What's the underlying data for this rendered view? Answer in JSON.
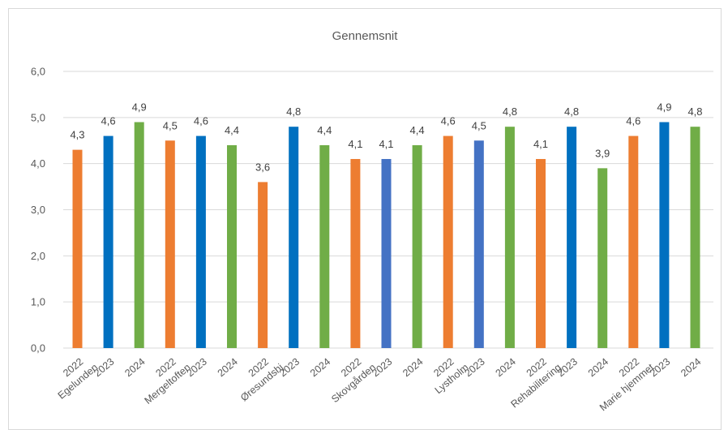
{
  "chart_data": {
    "type": "bar",
    "title": "Gennemsnit",
    "ylim": [
      0,
      6
    ],
    "yticks": [
      "0,0",
      "1,0",
      "2,0",
      "3,0",
      "4,0",
      "5,0",
      "6,0"
    ],
    "ytick_values": [
      0,
      1,
      2,
      3,
      4,
      5,
      6
    ],
    "grid": true,
    "colors": {
      "2022": "#ed7d31",
      "2023": "#0070c0",
      "2024": "#70ad47",
      "alt2023": "#4472c4"
    },
    "bars": [
      {
        "year": "2022",
        "value": 4.3,
        "label": "4,3",
        "color": "#ed7d31"
      },
      {
        "year": "2023",
        "value": 4.6,
        "label": "4,6",
        "color": "#0070c0"
      },
      {
        "year": "2024",
        "value": 4.9,
        "label": "4,9",
        "color": "#70ad47"
      },
      {
        "year": "2022",
        "value": 4.5,
        "label": "4,5",
        "color": "#ed7d31"
      },
      {
        "year": "2023",
        "value": 4.6,
        "label": "4,6",
        "color": "#0070c0"
      },
      {
        "year": "2024",
        "value": 4.4,
        "label": "4,4",
        "color": "#70ad47"
      },
      {
        "year": "2022",
        "value": 3.6,
        "label": "3,6",
        "color": "#ed7d31"
      },
      {
        "year": "2023",
        "value": 4.8,
        "label": "4,8",
        "color": "#0070c0"
      },
      {
        "year": "2024",
        "value": 4.4,
        "label": "4,4",
        "color": "#70ad47"
      },
      {
        "year": "2022",
        "value": 4.1,
        "label": "4,1",
        "color": "#ed7d31"
      },
      {
        "year": "2023",
        "value": 4.1,
        "label": "4,1",
        "color": "#4472c4"
      },
      {
        "year": "2024",
        "value": 4.4,
        "label": "4,4",
        "color": "#70ad47"
      },
      {
        "year": "2022",
        "value": 4.6,
        "label": "4,6",
        "color": "#ed7d31"
      },
      {
        "year": "2023",
        "value": 4.5,
        "label": "4,5",
        "color": "#4472c4"
      },
      {
        "year": "2024",
        "value": 4.8,
        "label": "4,8",
        "color": "#70ad47"
      },
      {
        "year": "2022",
        "value": 4.1,
        "label": "4,1",
        "color": "#ed7d31"
      },
      {
        "year": "2023",
        "value": 4.8,
        "label": "4,8",
        "color": "#0070c0"
      },
      {
        "year": "2024",
        "value": 3.9,
        "label": "3,9",
        "color": "#70ad47"
      },
      {
        "year": "2022",
        "value": 4.6,
        "label": "4,6",
        "color": "#ed7d31"
      },
      {
        "year": "2023",
        "value": 4.9,
        "label": "4,9",
        "color": "#0070c0"
      },
      {
        "year": "2024",
        "value": 4.8,
        "label": "4,8",
        "color": "#70ad47"
      }
    ],
    "groups": [
      {
        "name": "Egelunden",
        "first_bar": 0
      },
      {
        "name": "Mergeltoften",
        "first_bar": 3
      },
      {
        "name": "Øresundshj",
        "first_bar": 6
      },
      {
        "name": "Skovgården",
        "first_bar": 9
      },
      {
        "name": "Lystholm",
        "first_bar": 12
      },
      {
        "name": "Rehabilitering",
        "first_bar": 15
      },
      {
        "name": "Marie hjemmet",
        "first_bar": 18
      }
    ]
  }
}
